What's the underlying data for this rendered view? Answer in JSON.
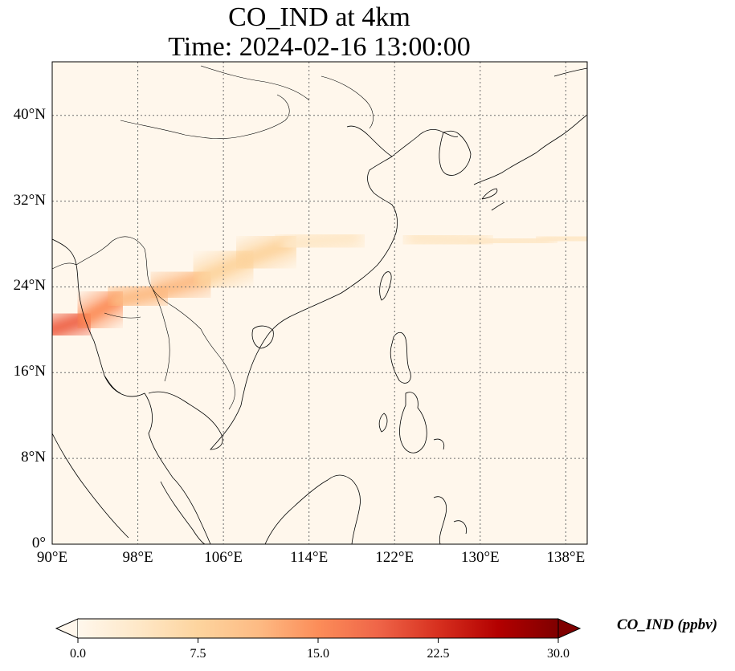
{
  "title": {
    "line1": "CO_IND at 4km",
    "line2": "Time: 2024-02-16 13:00:00"
  },
  "map": {
    "extent": {
      "lon_min": 90,
      "lon_max": 140,
      "lat_min": 0,
      "lat_max": 45
    },
    "lat_ticks": [
      {
        "value": 40,
        "label": "40°N"
      },
      {
        "value": 32,
        "label": "32°N"
      },
      {
        "value": 24,
        "label": "24°N"
      },
      {
        "value": 16,
        "label": "16°N"
      },
      {
        "value": 8,
        "label": "8°N"
      },
      {
        "value": 0,
        "label": "0°"
      }
    ],
    "lon_ticks": [
      {
        "value": 90,
        "label": "90°E"
      },
      {
        "value": 98,
        "label": "98°E"
      },
      {
        "value": 106,
        "label": "106°E"
      },
      {
        "value": 114,
        "label": "114°E"
      },
      {
        "value": 122,
        "label": "122°E"
      },
      {
        "value": 130,
        "label": "130°E"
      },
      {
        "value": 138,
        "label": "138°E"
      }
    ],
    "gridlines": true,
    "field": "CO_IND",
    "plume_path": [
      {
        "lon": 90,
        "lat": 20.0,
        "value": 20
      },
      {
        "lon": 93,
        "lat": 21.0,
        "value": 17
      },
      {
        "lon": 96,
        "lat": 22.7,
        "value": 14
      },
      {
        "lon": 100,
        "lat": 23.6,
        "value": 12
      },
      {
        "lon": 104,
        "lat": 24.8,
        "value": 10
      },
      {
        "lon": 108,
        "lat": 26.5,
        "value": 7
      },
      {
        "lon": 112,
        "lat": 28.0,
        "value": 5
      },
      {
        "lon": 118,
        "lat": 28.6,
        "value": 5
      },
      {
        "lon": 124,
        "lat": 28.6,
        "value": 5
      },
      {
        "lon": 130,
        "lat": 28.2,
        "value": 5
      },
      {
        "lon": 136,
        "lat": 28.4,
        "value": 4.5
      },
      {
        "lon": 140,
        "lat": 28.6,
        "value": 4
      }
    ]
  },
  "colorbar": {
    "min": 0.0,
    "max": 30.0,
    "ticks": [
      "0.0",
      "7.5",
      "15.0",
      "22.5",
      "30.0"
    ],
    "label": "CO_IND (ppbv)",
    "extend": "both",
    "colormap": [
      "#fff7ec",
      "#fee8c8",
      "#fdd49e",
      "#fdbb84",
      "#fc8d59",
      "#ef6548",
      "#d7301f",
      "#b30000",
      "#7f0000"
    ]
  }
}
